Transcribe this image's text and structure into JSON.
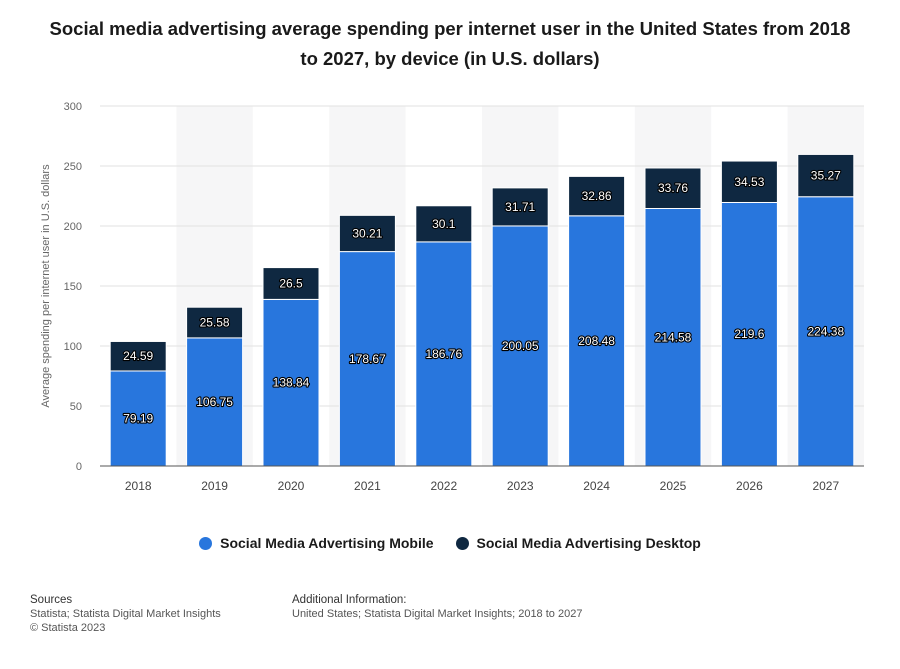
{
  "chart_data": {
    "type": "bar",
    "stacked": true,
    "title": "Social media advertising average spending per internet user in the United States from 2018 to 2027, by device (in U.S. dollars)",
    "xlabel": "",
    "ylabel": "Average spending per internet user in U.S. dollars",
    "ylim": [
      0,
      300
    ],
    "yticks": [
      0,
      50,
      100,
      150,
      200,
      250,
      300
    ],
    "grid": true,
    "legend_position": "bottom",
    "categories": [
      "2018",
      "2019",
      "2020",
      "2021",
      "2022",
      "2023",
      "2024",
      "2025",
      "2026",
      "2027"
    ],
    "series": [
      {
        "name": "Social Media Advertising Mobile",
        "color": "#2876dd",
        "values": [
          79.19,
          106.75,
          138.84,
          178.67,
          186.76,
          200.05,
          208.48,
          214.58,
          219.6,
          224.38
        ],
        "labels": [
          "79.19",
          "106.75",
          "138.84",
          "178.67",
          "186.76",
          "200.05",
          "208.48",
          "214.58",
          "219.6",
          "224.38"
        ]
      },
      {
        "name": "Social Media Advertising Desktop",
        "color": "#0f2841",
        "values": [
          24.59,
          25.58,
          26.5,
          30.21,
          30.1,
          31.71,
          32.86,
          33.76,
          34.53,
          35.27
        ],
        "labels": [
          "24.59",
          "25.58",
          "26.5",
          "30.21",
          "30.1",
          "31.71",
          "32.86",
          "33.76",
          "34.53",
          "35.27"
        ]
      }
    ]
  },
  "footer": {
    "sources_heading": "Sources",
    "sources_line1": "Statista; Statista Digital Market Insights",
    "sources_line2": "© Statista 2023",
    "info_heading": "Additional Information:",
    "info_line1": "United States; Statista Digital Market Insights; 2018 to 2027"
  }
}
